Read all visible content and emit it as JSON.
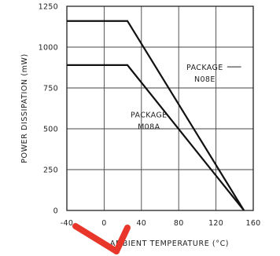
{
  "chart_data": {
    "type": "line",
    "xlabel": "AMBIENT TEMPERATURE (°C)",
    "ylabel": "POWER DISSIPATION (mW)",
    "xlim": [
      -40,
      160
    ],
    "ylim": [
      0,
      1250
    ],
    "xticks": [
      "-40",
      "0",
      "40",
      "80",
      "120",
      "160"
    ],
    "yticks": [
      "0",
      "250",
      "500",
      "750",
      "1000",
      "1250"
    ],
    "grid": true,
    "series": [
      {
        "name": "PACKAGE N08E",
        "label_lines": [
          "PACKAGE",
          "N08E"
        ],
        "x": [
          -40,
          25,
          150
        ],
        "y": [
          1160,
          1160,
          0
        ],
        "color": "#111111"
      },
      {
        "name": "PACKAGE M08A",
        "label_lines": [
          "PACKAGE",
          "M08A"
        ],
        "x": [
          -40,
          25,
          150
        ],
        "y": [
          890,
          890,
          0
        ],
        "color": "#111111"
      }
    ],
    "annotation_color": "#e8362b"
  }
}
